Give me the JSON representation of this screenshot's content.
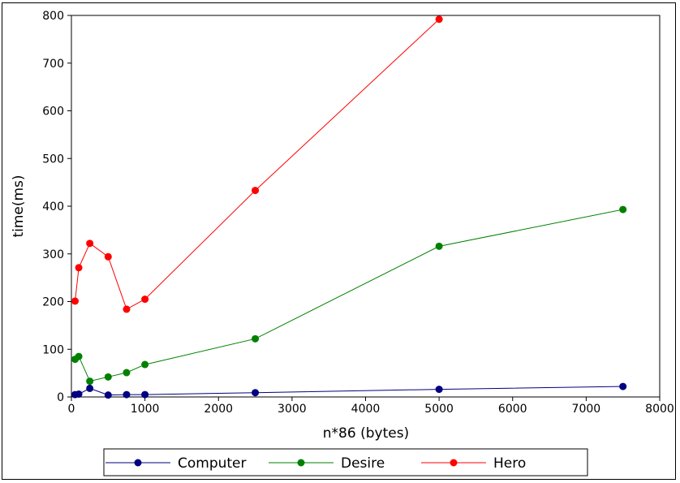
{
  "chart_data": {
    "type": "line",
    "xlabel": "n*86 (bytes)",
    "ylabel": "time(ms)",
    "xlim": [
      0,
      8000
    ],
    "ylim": [
      0,
      800
    ],
    "xticks": [
      0,
      1000,
      2000,
      3000,
      4000,
      5000,
      6000,
      7000,
      8000
    ],
    "yticks": [
      0,
      100,
      200,
      300,
      400,
      500,
      600,
      700,
      800
    ],
    "grid": false,
    "legend_position": "bottom",
    "series": [
      {
        "name": "Computer",
        "color": "#000080",
        "x": [
          50,
          100,
          250,
          500,
          750,
          1000,
          2500,
          5000,
          7500
        ],
        "y": [
          5,
          6,
          18,
          4,
          5,
          5,
          9,
          16,
          22
        ]
      },
      {
        "name": "Desire",
        "color": "#008000",
        "x": [
          50,
          100,
          250,
          500,
          750,
          1000,
          2500,
          5000,
          7500
        ],
        "y": [
          79,
          85,
          33,
          42,
          51,
          68,
          122,
          316,
          393
        ]
      },
      {
        "name": "Hero",
        "color": "#ff0000",
        "x": [
          50,
          100,
          250,
          500,
          750,
          1000,
          2500,
          5000
        ],
        "y": [
          201,
          271,
          322,
          294,
          184,
          205,
          433,
          792
        ]
      }
    ]
  }
}
